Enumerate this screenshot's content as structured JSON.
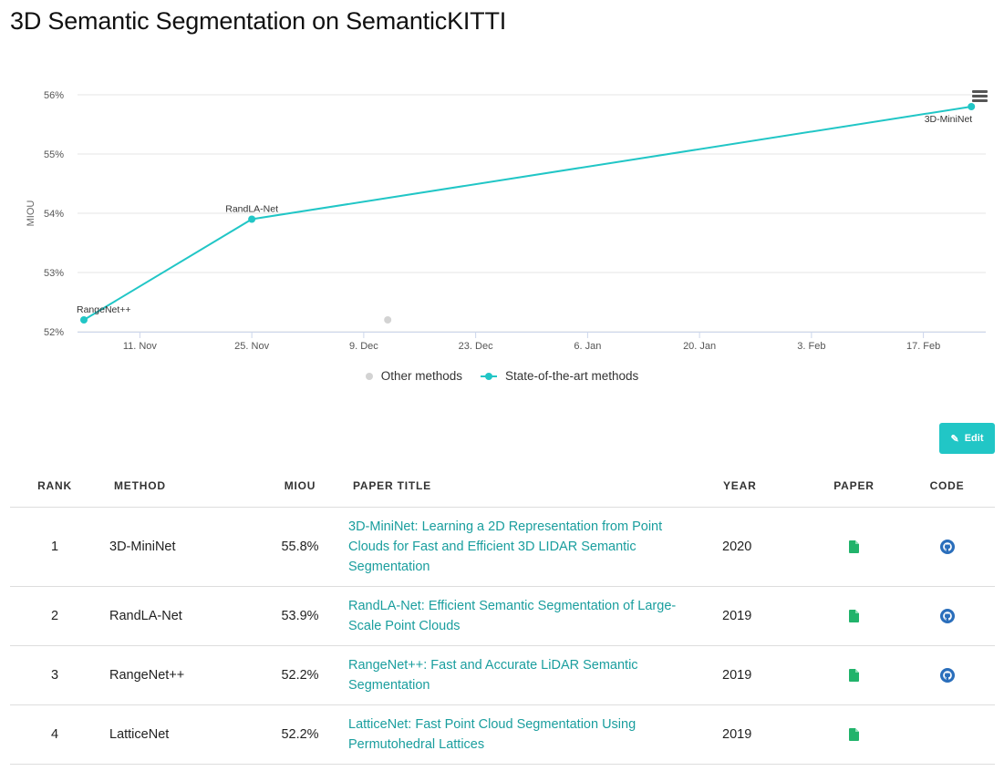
{
  "page": {
    "title": "3D Semantic Segmentation on SemanticKITTI"
  },
  "chart_data": {
    "type": "line",
    "title": "",
    "ylabel": "MIOU",
    "xlabel": "",
    "ylim": [
      52,
      56
    ],
    "yticks": [
      "52%",
      "53%",
      "54%",
      "55%",
      "56%"
    ],
    "xticks": [
      "11. Nov",
      "25. Nov",
      "9. Dec",
      "23. Dec",
      "6. Jan",
      "20. Jan",
      "3. Feb",
      "17. Feb"
    ],
    "grid": true,
    "legend_placement": "bottom-center",
    "series": [
      {
        "name": "State-of-the-art methods",
        "color": "#21c6c6",
        "points": [
          {
            "x": "2018-11-04",
            "y": 52.2,
            "label": "RangeNet++"
          },
          {
            "x": "2018-11-25",
            "y": 53.9,
            "label": "RandLA-Net"
          },
          {
            "x": "2019-02-23",
            "y": 55.8,
            "label": "3D-MiniNet"
          }
        ]
      },
      {
        "name": "Other methods",
        "color": "#d3d3d3",
        "points": [
          {
            "x": "2018-12-12",
            "y": 52.2
          }
        ]
      }
    ]
  },
  "legend": {
    "other_label": "Other methods",
    "sota_label": "State-of-the-art methods"
  },
  "edit_button": {
    "label": "Edit"
  },
  "table": {
    "headers": {
      "rank": "RANK",
      "method": "METHOD",
      "miou": "MIOU",
      "paper_title": "PAPER TITLE",
      "year": "YEAR",
      "paper": "PAPER",
      "code": "CODE"
    },
    "rows": [
      {
        "rank": "1",
        "method": "3D-MiniNet",
        "miou": "55.8%",
        "title": "3D-MiniNet: Learning a 2D Representation from Point Clouds for Fast and Efficient 3D LIDAR Semantic Segmentation",
        "year": "2020",
        "has_code": true
      },
      {
        "rank": "2",
        "method": "RandLA-Net",
        "miou": "53.9%",
        "title": "RandLA-Net: Efficient Semantic Segmentation of Large-Scale Point Clouds",
        "year": "2019",
        "has_code": true
      },
      {
        "rank": "3",
        "method": "RangeNet++",
        "miou": "52.2%",
        "title": "RangeNet++: Fast and Accurate LiDAR Semantic Segmentation",
        "year": "2019",
        "has_code": true
      },
      {
        "rank": "4",
        "method": "LatticeNet",
        "miou": "52.2%",
        "title": "LatticeNet: Fast Point Cloud Segmentation Using Permutohedral Lattices",
        "year": "2019",
        "has_code": false
      }
    ]
  },
  "colors": {
    "accent": "#21c6c6",
    "link": "#1a9e9e",
    "paper_icon": "#21b36b",
    "code_icon": "#2a6ebb"
  },
  "icons": {
    "menu": "hamburger-menu-icon",
    "edit": "pencil-icon",
    "paper": "document-icon",
    "code": "github-icon"
  }
}
